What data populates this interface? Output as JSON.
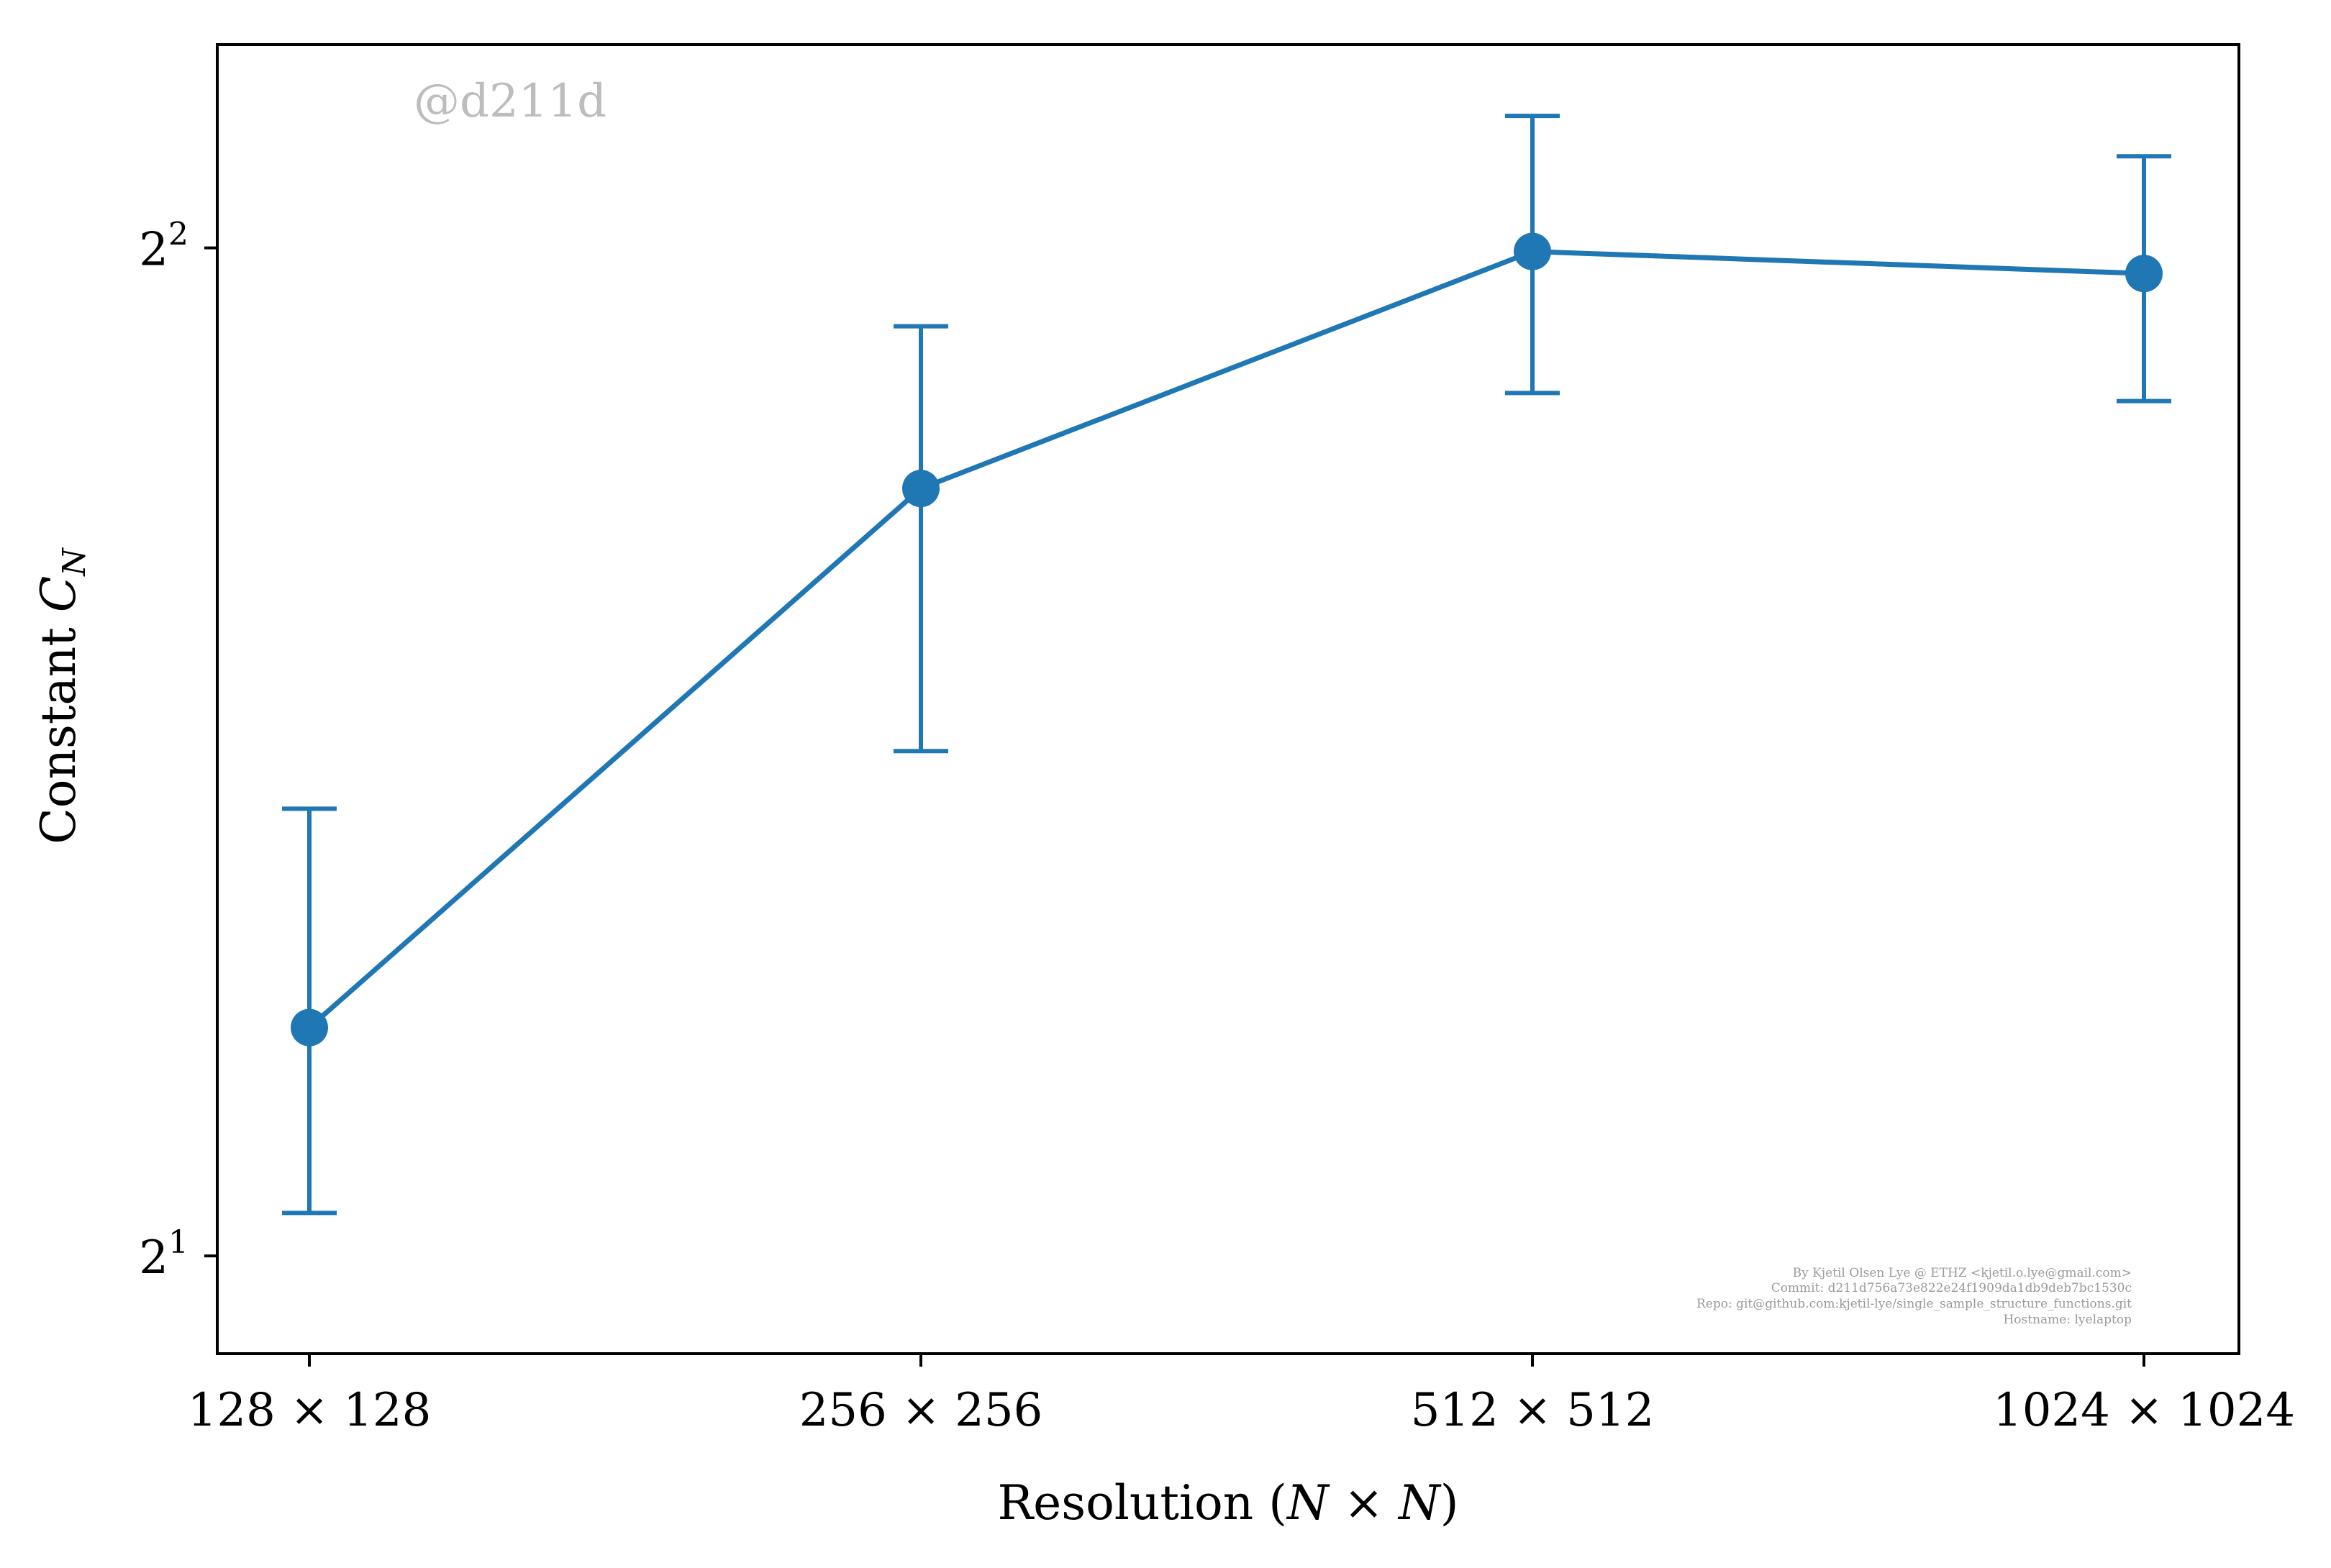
{
  "chart_data": {
    "type": "line",
    "categories": [
      "128 × 128",
      "256 × 256",
      "512 × 512",
      "1024 × 1024"
    ],
    "series": [
      {
        "values": [
          2.34,
          3.39,
          3.99,
          3.93
        ],
        "error_low": [
          2.06,
          2.83,
          3.62,
          3.6
        ],
        "error_high": [
          2.72,
          3.79,
          4.38,
          4.26
        ]
      }
    ],
    "xlabel_text": "Resolution (",
    "xlabel_math": "N × N",
    "xlabel_close": ")",
    "ylabel_text": "Constant ",
    "ylabel_math": "C",
    "ylabel_sub": "N",
    "y_scale": "log2",
    "ylim": [
      1.87,
      4.6
    ],
    "y_ticks": [
      {
        "base": "2",
        "exp": "1",
        "value": 2
      },
      {
        "base": "2",
        "exp": "2",
        "value": 4
      }
    ],
    "grid": false,
    "color": "#1f77b4"
  },
  "watermark": "@d211d",
  "info_lines": [
    "By Kjetil Olsen Lye @ ETHZ <kjetil.o.lye@gmail.com>",
    "Commit: d211d756a73e822e24f1909da1db9deb7bc1530c",
    "Repo: git@github.com:kjetil-lye/single_sample_structure_functions.git",
    "Hostname: lyelaptop"
  ]
}
